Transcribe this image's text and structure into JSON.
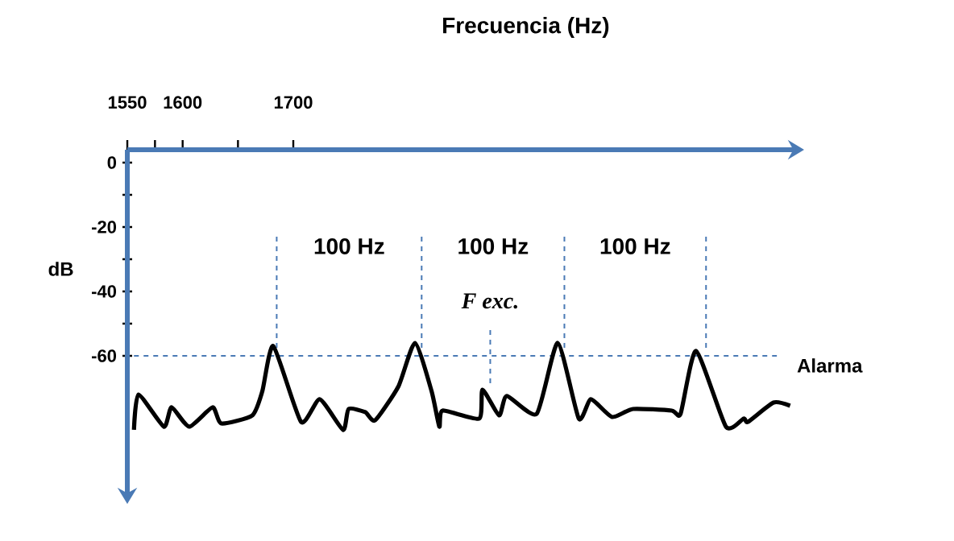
{
  "chart_data": {
    "type": "line",
    "xlabel": "Frecuencia (Hz)",
    "ylabel": "dB",
    "xlim": [
      1550,
      2150
    ],
    "ylim": [
      -102,
      4
    ],
    "xticks": [
      1550,
      {
        "value": 1575,
        "label": null
      },
      1600,
      {
        "value": 1650,
        "label": null
      },
      1700
    ],
    "yticks": [
      0,
      {
        "value": -10,
        "label": null
      },
      -20,
      {
        "value": -30,
        "label": null
      },
      -40,
      {
        "value": -50,
        "label": null
      },
      -60
    ],
    "x": [
      1556,
      1560,
      1583,
      1590,
      1606,
      1627,
      1635,
      1663,
      1672,
      1682,
      1707,
      1724,
      1745,
      1750,
      1765,
      1774,
      1795,
      1810,
      1825,
      1832,
      1835,
      1868,
      1871,
      1886,
      1893,
      1920,
      1939,
      1958,
      1969,
      1988,
      2007,
      2042,
      2050,
      2064,
      2091,
      2107,
      2111,
      2134,
      2149
    ],
    "series": [
      {
        "color": "#000000",
        "values": [
          -83,
          -72,
          -82,
          -76,
          -82,
          -76,
          -81,
          -78.5,
          -71,
          -57,
          -80.5,
          -73.5,
          -83,
          -76.5,
          -77.5,
          -80,
          -69.5,
          -56,
          -71,
          -82,
          -77,
          -79.5,
          -70.5,
          -78.5,
          -72.5,
          -78,
          -56,
          -79.5,
          -73.5,
          -79,
          -76.5,
          -77,
          -78,
          -58.5,
          -82,
          -79.5,
          -80.5,
          -74.5,
          -75.5
        ]
      }
    ],
    "ref_lines": [
      {
        "axis": "y",
        "value": -60,
        "label": "Alarma",
        "color": "#4a7ab5",
        "line_style": "dashed"
      },
      {
        "axis": "x",
        "value": 1685,
        "color": "#4a7ab5",
        "line_style": "dashed"
      },
      {
        "axis": "x",
        "value": 1816,
        "color": "#4a7ab5",
        "line_style": "dashed"
      },
      {
        "axis": "x",
        "value": 1945,
        "color": "#4a7ab5",
        "line_style": "dashed"
      },
      {
        "axis": "x",
        "value": 2073,
        "color": "#4a7ab5",
        "line_style": "dashed"
      },
      {
        "axis": "x",
        "value": 1878,
        "color": "#4a7ab5",
        "line_style": "dashed"
      }
    ],
    "annotations": [
      "100 Hz",
      "100 Hz",
      "100 Hz",
      "F exc."
    ],
    "grid": false,
    "marker": "none",
    "line_style": "solid"
  }
}
